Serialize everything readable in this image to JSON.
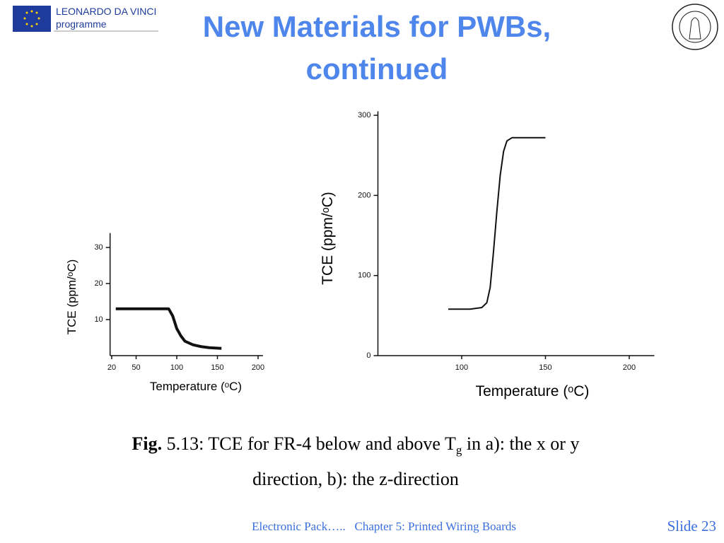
{
  "logo": {
    "line1": "LEONARDO DA VINCI",
    "line2": "programme"
  },
  "title": {
    "line1": "New Materials for PWBs,",
    "line2": "continued"
  },
  "caption": {
    "fig": "Fig.",
    "text": "5.13: TCE for FR-4 below and above T",
    "sub": "g",
    "rest": "in a): the x or y",
    "line2": "direction, b): the z-direction"
  },
  "footer": {
    "left": "Electronic Pack…..   Chapter 5: Printed Wiring Boards",
    "right": "Slide 23"
  },
  "chart_data": [
    {
      "type": "line",
      "x_label": "Temperature (ᵒC)",
      "y_label": "TCE (ppm/ᵒC)",
      "x": [
        25,
        40,
        60,
        80,
        90,
        95,
        100,
        105,
        110,
        120,
        130,
        140,
        155
      ],
      "values": [
        13,
        13,
        13,
        13,
        13,
        11,
        7.5,
        5.5,
        4,
        3,
        2.5,
        2.2,
        2
      ],
      "color": "#111111",
      "xlim": [
        18,
        206
      ],
      "ylim": [
        0,
        34
      ],
      "xticks": [
        20,
        50,
        100,
        150,
        200
      ],
      "yticks": [
        10,
        20,
        30
      ]
    },
    {
      "type": "line",
      "x_label": "Temperature (ᵒC)",
      "y_label": "TCE (ppm/ᵒC)",
      "x": [
        92,
        105,
        112,
        115,
        117,
        119,
        121,
        123,
        125,
        127,
        130,
        140,
        150
      ],
      "values": [
        58,
        58,
        60,
        66,
        85,
        130,
        180,
        225,
        255,
        268,
        272,
        272,
        272
      ],
      "color": "#111111",
      "xlim": [
        50,
        215
      ],
      "ylim": [
        0,
        305
      ],
      "xticks": [
        100,
        150,
        200
      ],
      "yticks": [
        0,
        100,
        200,
        300
      ]
    }
  ]
}
